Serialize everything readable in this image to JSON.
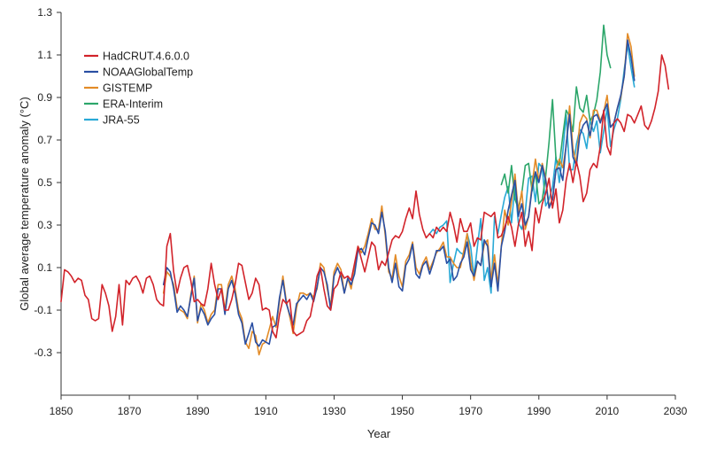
{
  "chart_data": {
    "type": "line",
    "title": "",
    "xlabel": "Year",
    "ylabel": "Global average temperature anomaly (°C)",
    "xlim": [
      1850,
      2030
    ],
    "ylim": [
      -0.5,
      1.3
    ],
    "x_ticks": [
      1850,
      1870,
      1890,
      1910,
      1930,
      1950,
      1970,
      1990,
      2010,
      2030
    ],
    "y_ticks": [
      -0.3,
      -0.1,
      0.1,
      0.3,
      0.5,
      0.7,
      0.9,
      1.1,
      1.3
    ],
    "y_tick_labels": [
      "-0.3",
      "-0.1",
      "0.1",
      "0.3",
      "0.5",
      "0.7",
      "0.9",
      "1.1",
      "1.3"
    ],
    "grid": false,
    "legend_position": "top-left",
    "series": [
      {
        "name": "JRA-55",
        "color": "#29a9d6",
        "x_start": 1958,
        "values": [
          0.26,
          0.28,
          0.26,
          0.29,
          0.3,
          0.32,
          0.03,
          0.12,
          0.19,
          0.17,
          0.16,
          0.26,
          0.2,
          0.06,
          0.2,
          0.33,
          0.04,
          0.1,
          -0.02,
          0.34,
          0.26,
          0.35,
          0.43,
          0.48,
          0.31,
          0.49,
          0.31,
          0.28,
          0.36,
          0.52,
          0.53,
          0.41,
          0.59,
          0.57,
          0.39,
          0.42,
          0.48,
          0.62,
          0.5,
          0.64,
          0.82,
          0.56,
          0.56,
          0.68,
          0.75,
          0.73,
          0.66,
          0.79,
          0.74,
          0.79,
          0.64,
          0.74,
          0.85,
          0.67,
          0.75,
          0.8,
          0.89,
          1.03,
          1.15,
          1.04,
          0.95
        ]
      },
      {
        "name": "ERA-Interim",
        "color": "#2ca66a",
        "x_start": 1979,
        "values": [
          0.49,
          0.54,
          0.45,
          0.58,
          0.42,
          0.38,
          0.45,
          0.58,
          0.59,
          0.46,
          0.55,
          0.4,
          0.42,
          0.53,
          0.69,
          0.89,
          0.61,
          0.58,
          0.72,
          0.84,
          0.81,
          0.74,
          0.95,
          0.85,
          0.83,
          0.91,
          0.79,
          0.82,
          0.89,
          1.02,
          1.24,
          1.1,
          1.04
        ]
      },
      {
        "name": "GISTEMP",
        "color": "#e38b27",
        "x_start": 1880,
        "values": [
          -0.02,
          0.08,
          0.06,
          0.02,
          -0.09,
          -0.1,
          -0.11,
          -0.14,
          -0.03,
          0.06,
          -0.16,
          -0.07,
          -0.1,
          -0.16,
          -0.12,
          -0.1,
          0.02,
          0.02,
          -0.1,
          0.02,
          0.06,
          0.0,
          -0.1,
          -0.14,
          -0.25,
          -0.28,
          -0.2,
          -0.22,
          -0.31,
          -0.26,
          -0.25,
          -0.19,
          -0.13,
          -0.18,
          -0.06,
          0.06,
          -0.06,
          -0.13,
          -0.21,
          -0.09,
          -0.02,
          -0.02,
          -0.03,
          -0.02,
          -0.04,
          0.0,
          0.12,
          0.1,
          0.0,
          -0.08,
          0.08,
          0.12,
          0.09,
          -0.02,
          0.05,
          0.0,
          0.09,
          0.2,
          0.17,
          0.2,
          0.26,
          0.33,
          0.28,
          0.28,
          0.39,
          0.25,
          0.08,
          0.05,
          0.16,
          0.06,
          0.01,
          0.13,
          0.16,
          0.22,
          0.1,
          0.07,
          0.12,
          0.15,
          0.09,
          0.13,
          0.17,
          0.19,
          0.22,
          0.15,
          0.15,
          0.12,
          0.1,
          0.1,
          0.18,
          0.26,
          0.13,
          0.04,
          0.13,
          0.11,
          0.21,
          0.23,
          0.04,
          0.16,
          0.02,
          0.2,
          0.37,
          0.3,
          0.41,
          0.54,
          0.36,
          0.46,
          0.28,
          0.34,
          0.49,
          0.61,
          0.51,
          0.59,
          0.52,
          0.39,
          0.42,
          0.56,
          0.61,
          0.57,
          0.67,
          0.86,
          0.66,
          0.59,
          0.78,
          0.82,
          0.8,
          0.71,
          0.84,
          0.84,
          0.79,
          0.83,
          0.91,
          0.76,
          0.78,
          0.85,
          0.9,
          1.0,
          1.2,
          1.14,
          1.0
        ]
      },
      {
        "name": "NOAAGlobalTemp",
        "color": "#2a4fa3",
        "x_start": 1880,
        "values": [
          0.02,
          0.1,
          0.08,
          0.0,
          -0.11,
          -0.08,
          -0.1,
          -0.13,
          -0.04,
          0.05,
          -0.15,
          -0.09,
          -0.12,
          -0.17,
          -0.14,
          -0.12,
          0.0,
          0.0,
          -0.12,
          0.0,
          0.04,
          -0.02,
          -0.12,
          -0.16,
          -0.26,
          -0.21,
          -0.16,
          -0.25,
          -0.27,
          -0.24,
          -0.25,
          -0.26,
          -0.18,
          -0.17,
          -0.04,
          0.04,
          -0.07,
          -0.12,
          -0.17,
          -0.07,
          -0.05,
          -0.03,
          -0.05,
          -0.02,
          -0.06,
          0.01,
          0.1,
          0.08,
          0.02,
          -0.1,
          0.06,
          0.1,
          0.06,
          -0.02,
          0.05,
          0.02,
          0.07,
          0.18,
          0.19,
          0.16,
          0.24,
          0.31,
          0.3,
          0.26,
          0.36,
          0.27,
          0.1,
          0.03,
          0.12,
          0.01,
          -0.01,
          0.11,
          0.14,
          0.21,
          0.07,
          0.05,
          0.11,
          0.13,
          0.07,
          0.12,
          0.18,
          0.18,
          0.2,
          0.12,
          0.14,
          0.04,
          0.06,
          0.12,
          0.15,
          0.22,
          0.09,
          0.06,
          0.13,
          0.11,
          0.23,
          0.2,
          0.01,
          0.12,
          -0.01,
          0.2,
          0.27,
          0.37,
          0.44,
          0.51,
          0.34,
          0.4,
          0.3,
          0.34,
          0.47,
          0.55,
          0.5,
          0.58,
          0.51,
          0.38,
          0.42,
          0.56,
          0.57,
          0.51,
          0.68,
          0.82,
          0.62,
          0.58,
          0.72,
          0.77,
          0.79,
          0.72,
          0.81,
          0.82,
          0.78,
          0.83,
          0.87,
          0.76,
          0.78,
          0.85,
          0.91,
          1.0,
          1.17,
          1.09,
          0.98
        ]
      },
      {
        "name": "HadCRUT.4.6.0.0",
        "color": "#d2232a",
        "x_start": 1850,
        "values": [
          -0.06,
          0.09,
          0.08,
          0.06,
          0.03,
          0.05,
          0.04,
          -0.03,
          -0.05,
          -0.14,
          -0.15,
          -0.14,
          0.02,
          -0.02,
          -0.08,
          -0.2,
          -0.13,
          0.02,
          -0.17,
          0.04,
          0.02,
          0.05,
          0.06,
          0.03,
          -0.02,
          0.05,
          0.06,
          0.02,
          -0.05,
          -0.07,
          -0.08,
          0.2,
          0.26,
          0.08,
          -0.02,
          0.05,
          0.1,
          0.11,
          0.04,
          -0.06,
          -0.05,
          -0.07,
          -0.08,
          0.0,
          0.12,
          0.02,
          -0.05,
          0.0,
          -0.1,
          -0.1,
          -0.05,
          0.02,
          0.12,
          0.11,
          0.03,
          -0.05,
          -0.02,
          0.05,
          0.02,
          -0.1,
          -0.09,
          -0.1,
          -0.2,
          -0.23,
          -0.12,
          -0.05,
          -0.07,
          -0.05,
          -0.2,
          -0.22,
          -0.21,
          -0.2,
          -0.15,
          -0.13,
          -0.05,
          0.06,
          0.1,
          0.0,
          -0.08,
          -0.1,
          0.0,
          0.02,
          0.08,
          0.05,
          0.06,
          0.04,
          0.12,
          0.2,
          0.14,
          0.08,
          0.15,
          0.22,
          0.2,
          0.09,
          0.13,
          0.11,
          0.17,
          0.23,
          0.25,
          0.24,
          0.27,
          0.33,
          0.38,
          0.33,
          0.46,
          0.35,
          0.28,
          0.24,
          0.26,
          0.24,
          0.29,
          0.27,
          0.29,
          0.27,
          0.36,
          0.3,
          0.22,
          0.33,
          0.27,
          0.27,
          0.31,
          0.2,
          0.24,
          0.23,
          0.36,
          0.35,
          0.34,
          0.36,
          0.24,
          0.25,
          0.29,
          0.34,
          0.29,
          0.2,
          0.3,
          0.36,
          0.2,
          0.27,
          0.18,
          0.38,
          0.31,
          0.4,
          0.45,
          0.52,
          0.38,
          0.47,
          0.31,
          0.37,
          0.51,
          0.59,
          0.5,
          0.6,
          0.53,
          0.41,
          0.45,
          0.56,
          0.59,
          0.57,
          0.67,
          0.84,
          0.67,
          0.63,
          0.78,
          0.8,
          0.78,
          0.74,
          0.82,
          0.81,
          0.78,
          0.82,
          0.86,
          0.77,
          0.75,
          0.79,
          0.85,
          0.93,
          1.1,
          1.05,
          0.94
        ]
      }
    ],
    "legend_order": [
      "HadCRUT.4.6.0.0",
      "NOAAGlobalTemp",
      "GISTEMP",
      "ERA-Interim",
      "JRA-55"
    ]
  }
}
